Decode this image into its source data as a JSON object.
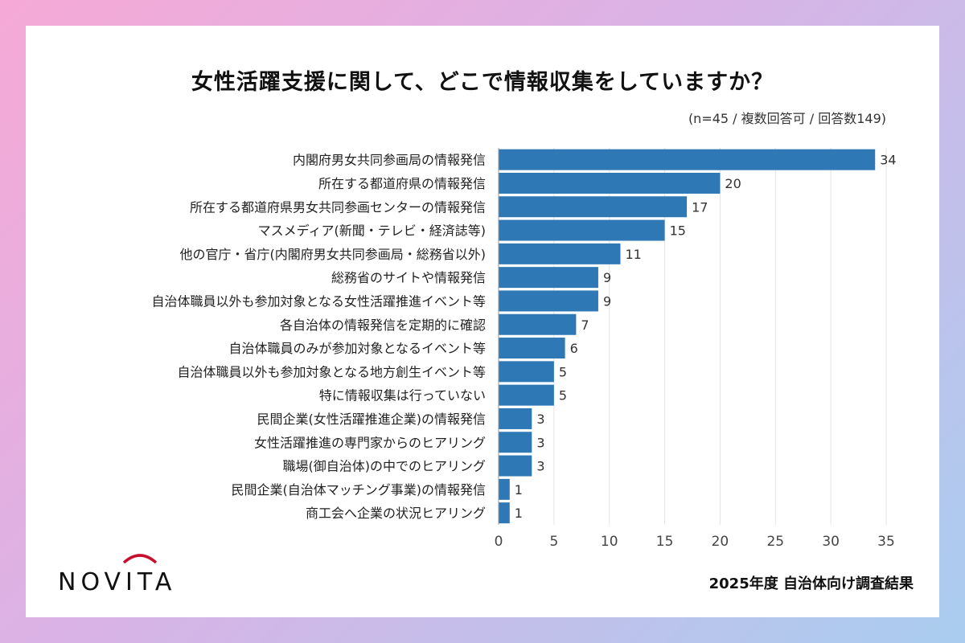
{
  "title": "女性活躍支援に関して、どこで情報収集をしていますか？",
  "note": "(n=45 / 複数回答可 / 回答数149)",
  "footer": "2025年度 自治体向け調査結果",
  "logo_text": "NOVITA",
  "colors": {
    "bar": "#2e78b6",
    "grid": "#e3e3e3",
    "logo_arc": "#c8102e"
  },
  "chart_data": {
    "type": "bar",
    "orientation": "horizontal",
    "categories": [
      "内閣府男女共同参画局の情報発信",
      "所在する都道府県の情報発信",
      "所在する都道府県男女共同参画センターの情報発信",
      "マスメディア(新聞・テレビ・経済誌等)",
      "他の官庁・省庁(内閣府男女共同参画局・総務省以外)",
      "総務省のサイトや情報発信",
      "自治体職員以外も参加対象となる女性活躍推進イベント等",
      "各自治体の情報発信を定期的に確認",
      "自治体職員のみが参加対象となるイベント等",
      "自治体職員以外も参加対象となる地方創生イベント等",
      "特に情報収集は行っていない",
      "民間企業(女性活躍推進企業)の情報発信",
      "女性活躍推進の専門家からのヒアリング",
      "職場(御自治体)の中でのヒアリング",
      "民間企業(自治体マッチング事業)の情報発信",
      "商工会へ企業の状況ヒアリング"
    ],
    "values": [
      34,
      20,
      17,
      15,
      11,
      9,
      9,
      7,
      6,
      5,
      5,
      3,
      3,
      3,
      1,
      1
    ],
    "xlim": [
      0,
      35
    ],
    "xticks": [
      0,
      5,
      10,
      15,
      20,
      25,
      30,
      35
    ],
    "grid": true,
    "data_labels": true
  }
}
